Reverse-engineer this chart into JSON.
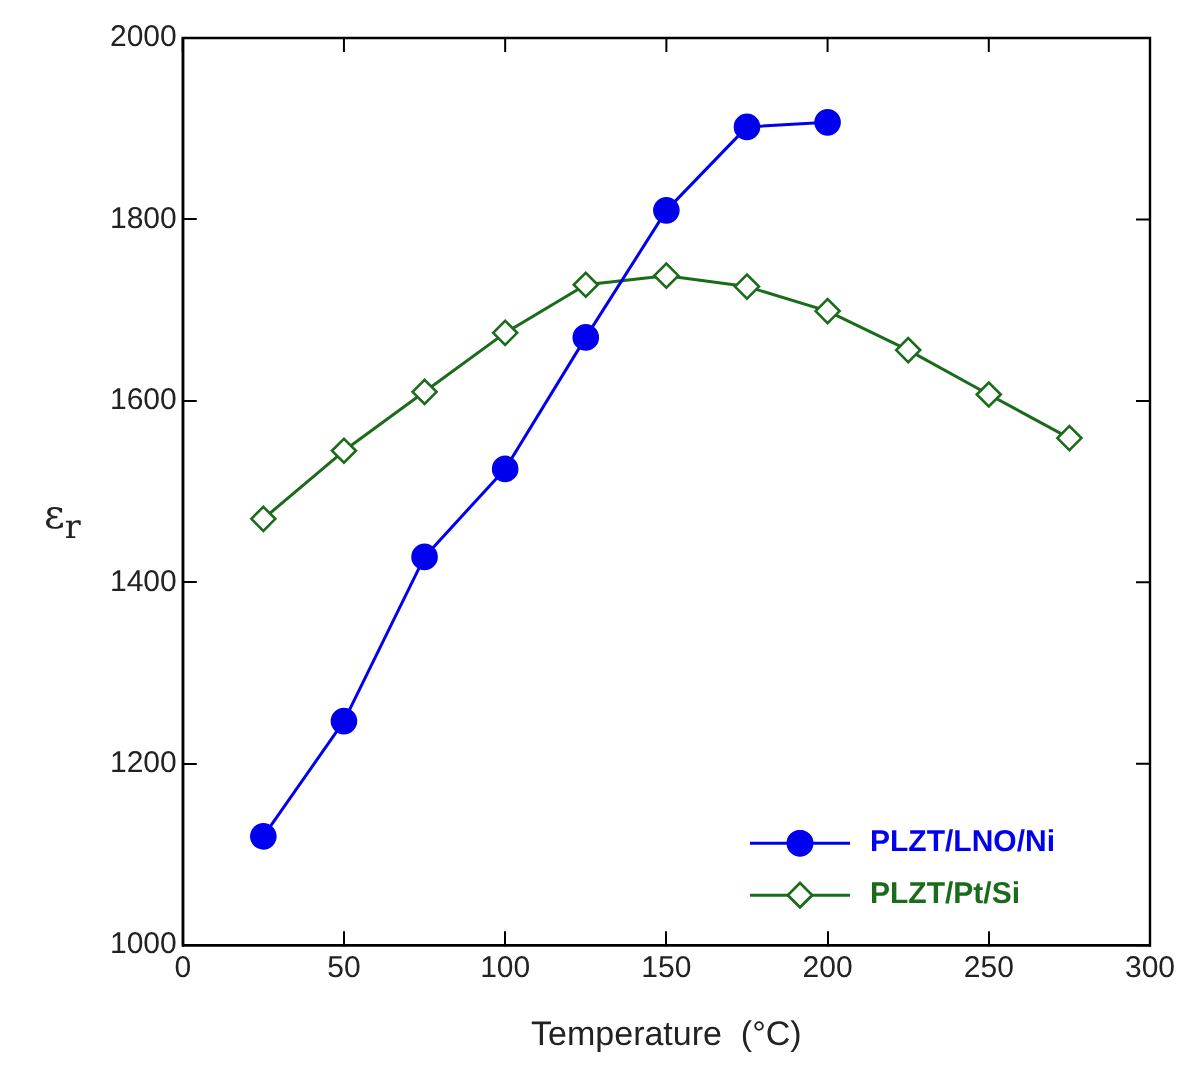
{
  "chart_data": {
    "type": "line",
    "xlabel": "Temperature  (°C)",
    "ylabel": "ε$_{r}$",
    "xlim": [
      0,
      300
    ],
    "xticks": [
      0,
      50,
      100,
      150,
      200,
      250,
      300
    ],
    "ylim": [
      1000,
      2000
    ],
    "yticks": [
      1000,
      1200,
      1400,
      1600,
      1800,
      2000
    ],
    "grid": false,
    "legend": "bottom right",
    "line_style": "solid",
    "series": [
      {
        "name": "PLZT/LNO/Ni",
        "color": "#0000ee",
        "marker": "circle",
        "x": [
          25,
          50,
          75,
          100,
          125,
          150,
          175,
          200
        ],
        "values": [
          1120,
          1247,
          1428,
          1525,
          1670,
          1810,
          1902,
          1907
        ]
      },
      {
        "name": "PLZT/Pt/Si",
        "color": "#1a6b1a",
        "marker": "diamond",
        "x": [
          25,
          50,
          75,
          100,
          125,
          150,
          175,
          200,
          225,
          250,
          275
        ],
        "values": [
          1470,
          1545,
          1610,
          1675,
          1728,
          1738,
          1726,
          1699,
          1656,
          1607,
          1559
        ]
      }
    ]
  }
}
